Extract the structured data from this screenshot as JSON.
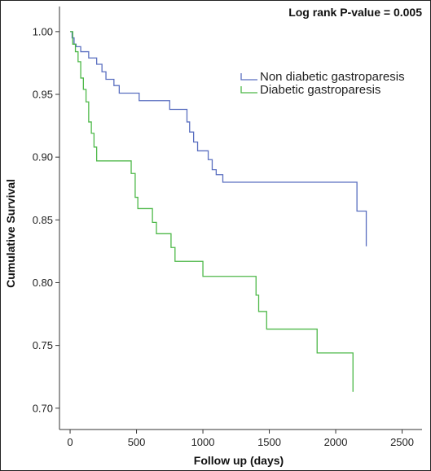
{
  "chart_data": {
    "type": "line",
    "title": "",
    "annotation": "Log rank P-value = 0.005",
    "xlabel": "Follow up (days)",
    "ylabel": "Cumulative Survival",
    "xlim": [
      -80,
      2650
    ],
    "ylim": [
      0.683,
      1.02
    ],
    "x_ticks": [
      0,
      500,
      1000,
      1500,
      2000,
      2500
    ],
    "y_ticks": [
      0.7,
      0.75,
      0.8,
      0.85,
      0.9,
      0.95,
      1.0
    ],
    "x_tick_labels": [
      "0",
      "500",
      "1000",
      "1500",
      "2000",
      "2500"
    ],
    "y_tick_labels": [
      "0.70",
      "0.75",
      "0.80",
      "0.85",
      "0.90",
      "0.95",
      "1.00"
    ],
    "grid": false,
    "legend_position": "top-right",
    "step": true,
    "series": [
      {
        "name": "Non diabetic gastroparesis",
        "color": "#5a6fc0",
        "x": [
          0,
          15,
          30,
          45,
          80,
          140,
          200,
          240,
          270,
          330,
          370,
          470,
          520,
          680,
          750,
          830,
          880,
          900,
          930,
          960,
          1040,
          1070,
          1100,
          1150,
          1500,
          2000,
          2160,
          2220,
          2230
        ],
        "y": [
          1.0,
          0.995,
          0.99,
          0.988,
          0.984,
          0.979,
          0.974,
          0.968,
          0.962,
          0.957,
          0.951,
          0.951,
          0.945,
          0.945,
          0.938,
          0.938,
          0.928,
          0.92,
          0.912,
          0.905,
          0.898,
          0.89,
          0.886,
          0.88,
          0.88,
          0.88,
          0.857,
          0.857,
          0.829
        ]
      },
      {
        "name": "Diabetic gastroparesis",
        "color": "#4db848",
        "x": [
          0,
          20,
          40,
          60,
          80,
          100,
          120,
          140,
          160,
          180,
          200,
          460,
          490,
          510,
          620,
          650,
          760,
          790,
          880,
          1000,
          1150,
          1390,
          1400,
          1420,
          1480,
          1750,
          1860,
          2050,
          2130
        ],
        "y": [
          1.0,
          0.99,
          0.984,
          0.976,
          0.963,
          0.954,
          0.944,
          0.928,
          0.919,
          0.908,
          0.897,
          0.887,
          0.868,
          0.859,
          0.848,
          0.839,
          0.828,
          0.817,
          0.817,
          0.805,
          0.805,
          0.805,
          0.79,
          0.777,
          0.763,
          0.763,
          0.744,
          0.744,
          0.713
        ]
      }
    ]
  }
}
